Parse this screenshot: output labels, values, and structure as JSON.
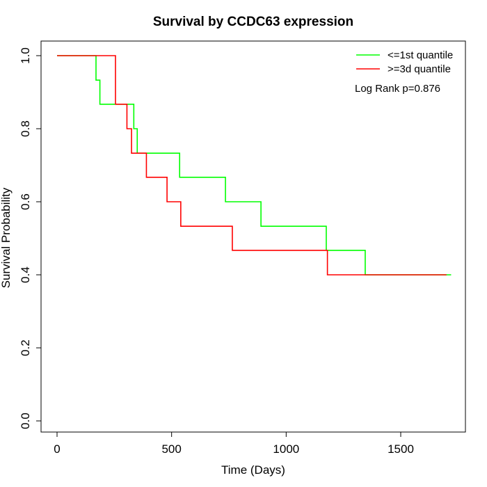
{
  "chart_data": {
    "type": "line",
    "title": "Survival by CCDC63 expression",
    "xlabel": "Time (Days)",
    "ylabel": "Survival Probability",
    "xlim": [
      0,
      1750
    ],
    "ylim": [
      0,
      1.0
    ],
    "x_ticks": [
      0,
      500,
      1000,
      1500
    ],
    "y_ticks": [
      0.0,
      0.2,
      0.4,
      0.6,
      0.8,
      1.0
    ],
    "x_tick_labels": [
      "0",
      "500",
      "1000",
      "1500"
    ],
    "y_tick_labels": [
      "0.0",
      "0.2",
      "0.4",
      "0.6",
      "0.8",
      "1.0"
    ],
    "grid": false,
    "step": true,
    "legend_position": "top-right",
    "annotation": "Log Rank p=0.876",
    "series": [
      {
        "name": "<=1st quantile",
        "color": "#00ff00",
        "x": [
          0,
          170,
          187,
          335,
          350,
          535,
          735,
          890,
          1175,
          1345,
          1720
        ],
        "y": [
          1.0,
          0.933,
          0.867,
          0.8,
          0.733,
          0.667,
          0.6,
          0.533,
          0.467,
          0.4,
          0.4
        ]
      },
      {
        "name": ">=3d quantile",
        "color": "#ff0000",
        "x": [
          0,
          255,
          305,
          325,
          390,
          480,
          540,
          765,
          1180,
          1700
        ],
        "y": [
          1.0,
          0.867,
          0.8,
          0.733,
          0.667,
          0.6,
          0.533,
          0.467,
          0.4,
          0.4
        ]
      }
    ]
  }
}
